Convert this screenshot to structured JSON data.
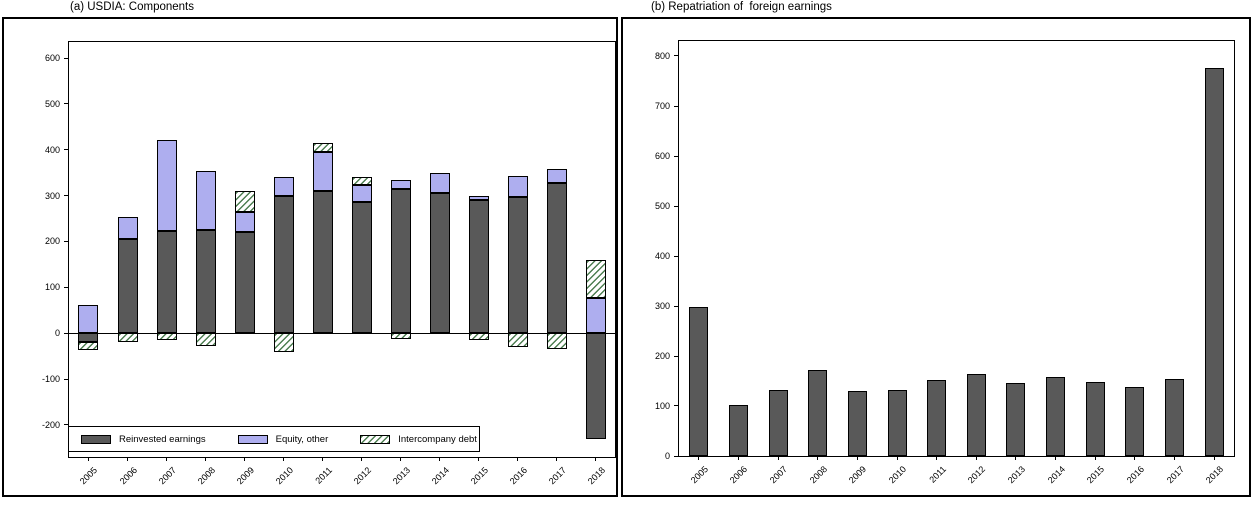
{
  "panels": [
    {
      "title": "(a) USDIA: Components"
    },
    {
      "title": "(b) Repatriation of  foreign earnings"
    }
  ],
  "colors": {
    "bar_dark": "#595959",
    "bar_purple": "#aeaeef",
    "hatch_green": "#4e7f52",
    "frame": "#000000",
    "background": "#ffffff"
  },
  "chart_data": [
    {
      "type": "bar",
      "stacked": true,
      "title": "(a) USDIA: Components",
      "categories": [
        "2005",
        "2006",
        "2007",
        "2008",
        "2009",
        "2010",
        "2011",
        "2012",
        "2013",
        "2014",
        "2015",
        "2016",
        "2017",
        "2018"
      ],
      "series": [
        {
          "name": "Reinvested earnings",
          "style": "solid-dark",
          "values": [
            -20,
            205,
            222,
            225,
            220,
            300,
            310,
            287,
            315,
            305,
            290,
            298,
            327,
            -230
          ]
        },
        {
          "name": "Equity, other",
          "style": "solid-purple",
          "values": [
            62,
            48,
            200,
            128,
            45,
            41,
            85,
            37,
            18,
            44,
            9,
            45,
            31,
            76
          ]
        },
        {
          "name": "Intercompany debt",
          "style": "hatch-green",
          "values": [
            -16,
            -20,
            -15,
            -27,
            45,
            -40,
            20,
            17,
            -12,
            0,
            -15,
            -30,
            -35,
            83
          ]
        }
      ],
      "ylim": [
        -270,
        635
      ],
      "yticks": [
        600,
        500,
        400,
        300,
        200,
        100,
        0,
        -100,
        -200
      ],
      "zero_line": true,
      "grid": false,
      "legend": true,
      "legend_position": "bottom-left-inside"
    },
    {
      "type": "bar",
      "stacked": false,
      "title": "(b) Repatriation of  foreign earnings",
      "categories": [
        "2005",
        "2006",
        "2007",
        "2008",
        "2009",
        "2010",
        "2011",
        "2012",
        "2013",
        "2014",
        "2015",
        "2016",
        "2017",
        "2018"
      ],
      "series": [
        {
          "style": "solid-dark",
          "values": [
            299,
            102,
            133,
            173,
            130,
            133,
            152,
            165,
            146,
            158,
            149,
            139,
            155,
            776
          ]
        }
      ],
      "ylim": [
        0,
        830
      ],
      "yticks": [
        800,
        700,
        600,
        500,
        400,
        300,
        200,
        100,
        0
      ],
      "zero_line": false,
      "grid": false,
      "legend": false,
      "legend_position": "none"
    }
  ]
}
